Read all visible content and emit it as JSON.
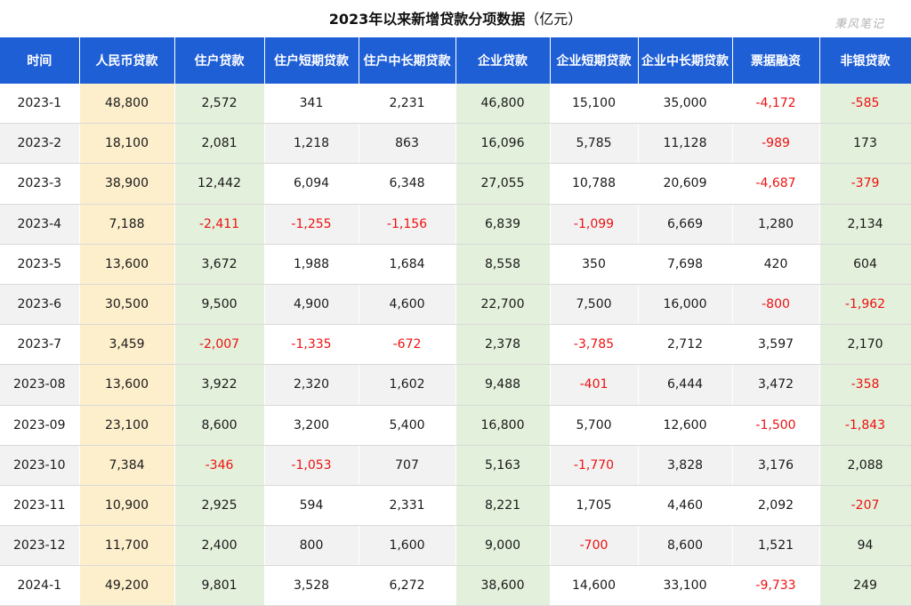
{
  "title": "2023年以来新增贷款分项数据",
  "unit": "（亿元）",
  "watermark": "秉风笔记",
  "columns": [
    "时间",
    "人民币贷款",
    "住户贷款",
    "住户短期贷款",
    "住户中长期贷款",
    "企业贷款",
    "企业短期贷款",
    "企业中长期贷款",
    "票据融资",
    "非银贷款"
  ],
  "rows": [
    [
      "2023-1",
      "48,800",
      "2,572",
      "341",
      "2,231",
      "46,800",
      "15,100",
      "35,000",
      "-4,172",
      "-585"
    ],
    [
      "2023-2",
      "18,100",
      "2,081",
      "1,218",
      "863",
      "16,096",
      "5,785",
      "11,128",
      "-989",
      "173"
    ],
    [
      "2023-3",
      "38,900",
      "12,442",
      "6,094",
      "6,348",
      "27,055",
      "10,788",
      "20,609",
      "-4,687",
      "-379"
    ],
    [
      "2023-4",
      "7,188",
      "-2,411",
      "-1,255",
      "-1,156",
      "6,839",
      "-1,099",
      "6,669",
      "1,280",
      "2,134"
    ],
    [
      "2023-5",
      "13,600",
      "3,672",
      "1,988",
      "1,684",
      "8,558",
      "350",
      "7,698",
      "420",
      "604"
    ],
    [
      "2023-6",
      "30,500",
      "9,500",
      "4,900",
      "4,600",
      "22,700",
      "7,500",
      "16,000",
      "-800",
      "-1,962"
    ],
    [
      "2023-7",
      "3,459",
      "-2,007",
      "-1,335",
      "-672",
      "2,378",
      "-3,785",
      "2,712",
      "3,597",
      "2,170"
    ],
    [
      "2023-08",
      "13,600",
      "3,922",
      "2,320",
      "1,602",
      "9,488",
      "-401",
      "6,444",
      "3,472",
      "-358"
    ],
    [
      "2023-09",
      "23,100",
      "8,600",
      "3,200",
      "5,400",
      "16,800",
      "5,700",
      "12,600",
      "-1,500",
      "-1,843"
    ],
    [
      "2023-10",
      "7,384",
      "-346",
      "-1,053",
      "707",
      "5,163",
      "-1,770",
      "3,828",
      "3,176",
      "2,088"
    ],
    [
      "2023-11",
      "10,900",
      "2,925",
      "594",
      "2,331",
      "8,221",
      "1,705",
      "4,460",
      "2,092",
      "-207"
    ],
    [
      "2023-12",
      "11,700",
      "2,400",
      "800",
      "1,600",
      "9,000",
      "-700",
      "8,600",
      "1,521",
      "94"
    ],
    [
      "2024-1",
      "49,200",
      "9,801",
      "3,528",
      "6,272",
      "38,600",
      "14,600",
      "33,100",
      "-9,733",
      "249"
    ]
  ],
  "colors": {
    "header_bg": "#1f5fd6",
    "highlight_yellow": "#fdefcc",
    "highlight_green": "#e3f0db",
    "negative_text": "#ee1111",
    "alt_row_bg": "#f2f2f2"
  }
}
